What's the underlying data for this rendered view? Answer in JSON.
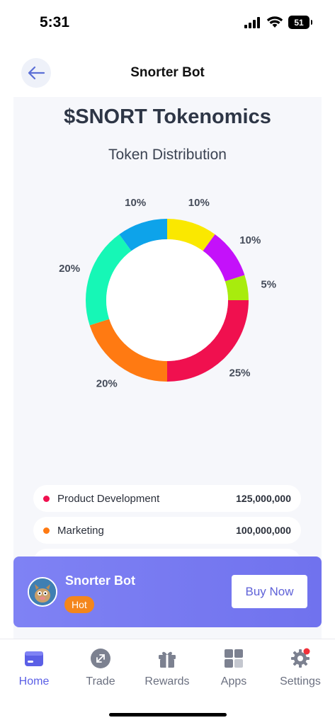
{
  "status_bar": {
    "time": "5:31",
    "battery": "51"
  },
  "header": {
    "title": "Snorter Bot"
  },
  "tokenomics": {
    "title": "$SNORT Tokenomics",
    "subtitle": "Token Distribution"
  },
  "chart_data": {
    "type": "pie",
    "title": "Token Distribution",
    "slices": [
      {
        "label": "",
        "value": 10,
        "display": "10%",
        "color": "#fae800"
      },
      {
        "label": "",
        "value": 10,
        "display": "10%",
        "color": "#c411fa"
      },
      {
        "label": "",
        "value": 5,
        "display": "5%",
        "color": "#a8ec0d"
      },
      {
        "label": "",
        "value": 25,
        "display": "25%",
        "color": "#f0104f"
      },
      {
        "label": "",
        "value": 20,
        "display": "20%",
        "color": "#ff7a12"
      },
      {
        "label": "",
        "value": 20,
        "display": "20%",
        "color": "#16f7b6"
      },
      {
        "label": "",
        "value": 10,
        "display": "10%",
        "color": "#0da3ea"
      }
    ],
    "donut": true
  },
  "legend": [
    {
      "label": "Product Development",
      "value": "125,000,000",
      "color": "#f0104f"
    },
    {
      "label": "Marketing",
      "value": "100,000,000",
      "color": "#ff7a12"
    }
  ],
  "promo": {
    "title": "Snorter Bot",
    "badge": "Hot",
    "button": "Buy Now"
  },
  "nav": {
    "items": [
      {
        "label": "Home",
        "icon": "wallet-icon",
        "active": true
      },
      {
        "label": "Trade",
        "icon": "trade-icon",
        "active": false
      },
      {
        "label": "Rewards",
        "icon": "gift-icon",
        "active": false
      },
      {
        "label": "Apps",
        "icon": "apps-grid-icon",
        "active": false
      },
      {
        "label": "Settings",
        "icon": "gear-icon",
        "active": false
      }
    ]
  },
  "colors": {
    "accent": "#5b5fe6",
    "banner": "#7576f0",
    "hot": "#f4861c"
  }
}
